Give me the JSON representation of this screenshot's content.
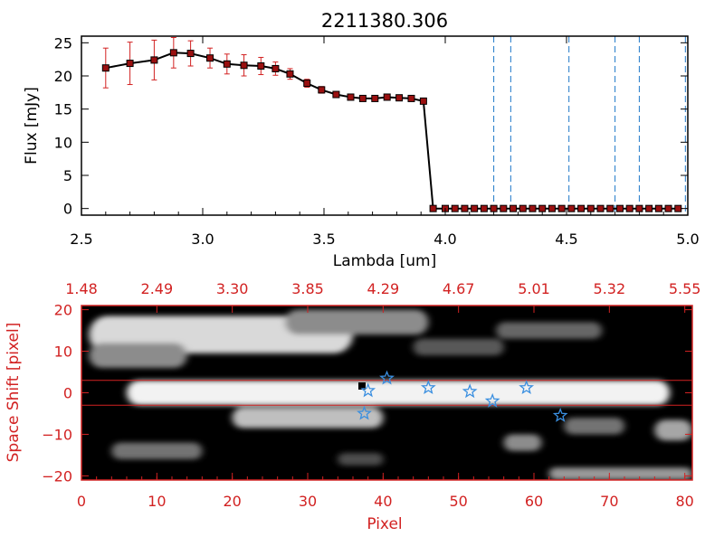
{
  "colors": {
    "axis_black": "#000000",
    "axis_red": "#d22222",
    "vline_blue": "#1f78c8",
    "marker_red": "#9a1010",
    "star_blue": "#3a8fe0"
  },
  "chart_data": [
    {
      "type": "line",
      "title": "2211380.306",
      "xlabel": "Lambda [um]",
      "ylabel": "Flux [mJy]",
      "xlim": [
        2.5,
        5.0
      ],
      "ylim": [
        -1,
        26
      ],
      "xticks": [
        2.5,
        3.0,
        3.5,
        4.0,
        4.5,
        5.0
      ],
      "xtick_labels": [
        "2.5",
        "3.0",
        "3.5",
        "4.0",
        "4.5",
        "5.0"
      ],
      "yticks": [
        0,
        5,
        10,
        15,
        20,
        25
      ],
      "ytick_labels": [
        "0",
        "5",
        "10",
        "15",
        "20",
        "25"
      ],
      "series": [
        {
          "name": "flux",
          "x": [
            2.6,
            2.7,
            2.8,
            2.88,
            2.95,
            3.03,
            3.1,
            3.17,
            3.24,
            3.3,
            3.36,
            3.43,
            3.49,
            3.55,
            3.61,
            3.66,
            3.71,
            3.76,
            3.81,
            3.86,
            3.91,
            3.95,
            4.0,
            4.04,
            4.08,
            4.12,
            4.16,
            4.2,
            4.24,
            4.28,
            4.32,
            4.36,
            4.4,
            4.44,
            4.48,
            4.52,
            4.56,
            4.6,
            4.64,
            4.68,
            4.72,
            4.76,
            4.8,
            4.84,
            4.88,
            4.92,
            4.96
          ],
          "y": [
            21.2,
            21.9,
            22.4,
            23.5,
            23.4,
            22.7,
            21.8,
            21.6,
            21.5,
            21.1,
            20.3,
            18.9,
            17.9,
            17.2,
            16.8,
            16.6,
            16.6,
            16.8,
            16.7,
            16.6,
            16.2,
            0.0,
            0.0,
            0.0,
            0.0,
            0.0,
            0.0,
            0.0,
            0.0,
            0.0,
            0.0,
            0.0,
            0.0,
            0.0,
            0.0,
            0.0,
            0.0,
            0.0,
            0.0,
            0.0,
            0.0,
            0.0,
            0.0,
            0.0,
            0.0,
            0.0,
            0.0
          ],
          "yerr": [
            3.0,
            3.2,
            3.0,
            2.3,
            1.9,
            1.5,
            1.5,
            1.6,
            1.3,
            1.0,
            0.8,
            0.6,
            0.5,
            0.4,
            0.3,
            0.3,
            0.3,
            0.3,
            0.3,
            0.3,
            0.3,
            0.0,
            0.0,
            0.0,
            0.0,
            0.0,
            0.0,
            0.0,
            0.0,
            0.0,
            0.0,
            0.0,
            0.0,
            0.0,
            0.0,
            0.0,
            0.0,
            0.0,
            0.0,
            0.0,
            0.0,
            0.0,
            0.0,
            0.0,
            0.0,
            0.0,
            0.0
          ]
        }
      ],
      "reference_lines_x": [
        4.2,
        4.27,
        4.51,
        4.7,
        4.8,
        4.99
      ]
    },
    {
      "type": "heatmap",
      "xlabel": "Pixel",
      "ylabel": "Space Shift [pixel]",
      "xlim": [
        0,
        81
      ],
      "ylim": [
        -21,
        21
      ],
      "xticks": [
        0,
        10,
        20,
        30,
        40,
        50,
        60,
        70,
        80
      ],
      "xtick_labels": [
        "0",
        "10",
        "20",
        "30",
        "40",
        "50",
        "60",
        "70",
        "80"
      ],
      "yticks": [
        -20,
        -10,
        0,
        10,
        20
      ],
      "ytick_labels": [
        "−20",
        "−10",
        "0",
        "10",
        "20"
      ],
      "top_axis_positions": [
        0,
        10,
        20,
        30,
        40,
        50,
        60,
        70,
        80
      ],
      "top_axis_labels": [
        "1.48",
        "2.49",
        "3.30",
        "3.85",
        "4.29",
        "4.67",
        "5.01",
        "5.32",
        "5.55"
      ],
      "extraction_band_y": [
        -3,
        3
      ],
      "bright_bands": [
        {
          "x0": 1,
          "x1": 36,
          "yc": 14,
          "h": 9,
          "peak": 0.85
        },
        {
          "x0": 1,
          "x1": 14,
          "yc": 9,
          "h": 6,
          "peak": 0.55
        },
        {
          "x0": 27,
          "x1": 46,
          "yc": 17,
          "h": 6,
          "peak": 0.55
        },
        {
          "x0": 44,
          "x1": 56,
          "yc": 11,
          "h": 4,
          "peak": 0.35
        },
        {
          "x0": 55,
          "x1": 69,
          "yc": 15,
          "h": 4,
          "peak": 0.4
        },
        {
          "x0": 6,
          "x1": 78,
          "yc": 0,
          "h": 6,
          "peak": 0.95
        },
        {
          "x0": 20,
          "x1": 40,
          "yc": -6,
          "h": 5,
          "peak": 0.75
        },
        {
          "x0": 4,
          "x1": 16,
          "yc": -14,
          "h": 4,
          "peak": 0.45
        },
        {
          "x0": 56,
          "x1": 61,
          "yc": -12,
          "h": 4,
          "peak": 0.55
        },
        {
          "x0": 64,
          "x1": 72,
          "yc": -8,
          "h": 4,
          "peak": 0.45
        },
        {
          "x0": 76,
          "x1": 81,
          "yc": -9,
          "h": 5,
          "peak": 0.65
        },
        {
          "x0": 62,
          "x1": 81,
          "yc": -19.5,
          "h": 3,
          "peak": 0.6
        },
        {
          "x0": 34,
          "x1": 40,
          "yc": -16,
          "h": 3,
          "peak": 0.3
        }
      ],
      "stars": [
        {
          "x": 38,
          "y": 0.5
        },
        {
          "x": 40.5,
          "y": 3.5
        },
        {
          "x": 46,
          "y": 1.2
        },
        {
          "x": 51.5,
          "y": 0.3
        },
        {
          "x": 54.5,
          "y": -2
        },
        {
          "x": 59,
          "y": 1.2
        },
        {
          "x": 37.5,
          "y": -5
        },
        {
          "x": 63.5,
          "y": -5.5
        }
      ]
    }
  ]
}
